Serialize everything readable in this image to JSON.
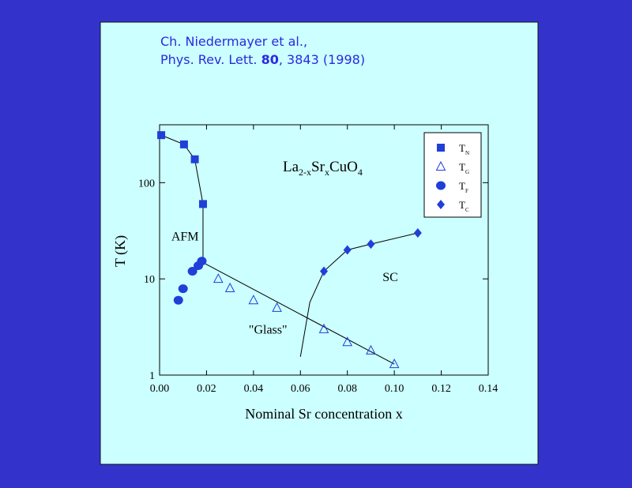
{
  "citation": {
    "line1": "Ch. Niedermayer et al.,",
    "line2": [
      "Phys. Rev. Lett. ",
      "80",
      ", 3843 (1998)"
    ]
  },
  "chart_data": {
    "type": "scatter",
    "xlabel": "Nominal Sr concentration x",
    "ylabel": "T (K)",
    "formula": [
      {
        "text": "La",
        "sub": "2-x"
      },
      {
        "text": "Sr",
        "sub": "x"
      },
      {
        "text": "CuO",
        "sub": "4"
      }
    ],
    "annotations": [
      {
        "text": "AFM",
        "x": 0.005,
        "y": 25
      },
      {
        "text": "\"Glass\"",
        "x": 0.038,
        "y": 2.7
      },
      {
        "text": "SC",
        "x": 0.095,
        "y": 9.5
      }
    ],
    "xlim": [
      0,
      0.14
    ],
    "ylim": [
      1,
      400
    ],
    "log_y": true,
    "xticks": [
      {
        "value": 0,
        "label": "0.00"
      },
      {
        "value": 0.02,
        "label": "0.02"
      },
      {
        "value": 0.04,
        "label": "0.04"
      },
      {
        "value": 0.06,
        "label": "0.06"
      },
      {
        "value": 0.08,
        "label": "0.08"
      },
      {
        "value": 0.1,
        "label": "0.10"
      },
      {
        "value": 0.12,
        "label": "0.12"
      },
      {
        "value": 0.14,
        "label": "0.14"
      }
    ],
    "yticks": [
      1,
      10,
      100
    ],
    "legend": "upper right",
    "series": [
      {
        "name": "T",
        "subscript": "N",
        "marker": "square",
        "color": "#1f3fd8",
        "x": [
          0.0007,
          0.0104,
          0.015,
          0.0185
        ],
        "values": [
          312,
          250,
          175,
          60
        ]
      },
      {
        "name": "T",
        "subscript": "G",
        "marker": "triangle",
        "color": "#1f3fd8",
        "x": [
          0.025,
          0.03,
          0.04,
          0.05,
          0.07,
          0.08,
          0.09,
          0.1
        ],
        "values": [
          10,
          8,
          6,
          5,
          3,
          2.2,
          1.8,
          1.3
        ]
      },
      {
        "name": "T",
        "subscript": "F",
        "marker": "circle",
        "color": "#1f3fd8",
        "x": [
          0.008,
          0.01,
          0.014,
          0.0165,
          0.018
        ],
        "values": [
          6,
          7.9,
          12,
          13.7,
          15.3
        ]
      },
      {
        "name": "T",
        "subscript": "C",
        "marker": "diamond",
        "color": "#1f3fd8",
        "x": [
          0.07,
          0.08,
          0.09,
          0.11
        ],
        "values": [
          12,
          20,
          23,
          30
        ]
      }
    ],
    "guides": [
      {
        "x": [
          0.0007,
          0.0104,
          0.015,
          0.0185,
          0.0185
        ],
        "values": [
          312,
          250,
          175,
          60,
          15
        ]
      },
      {
        "x": [
          0.018,
          0.1
        ],
        "values": [
          15,
          1.3
        ]
      },
      {
        "x": [
          0.06,
          0.064,
          0.07,
          0.08,
          0.09,
          0.11
        ],
        "values": [
          1.55,
          5.7,
          12,
          20,
          23,
          30
        ]
      }
    ]
  }
}
